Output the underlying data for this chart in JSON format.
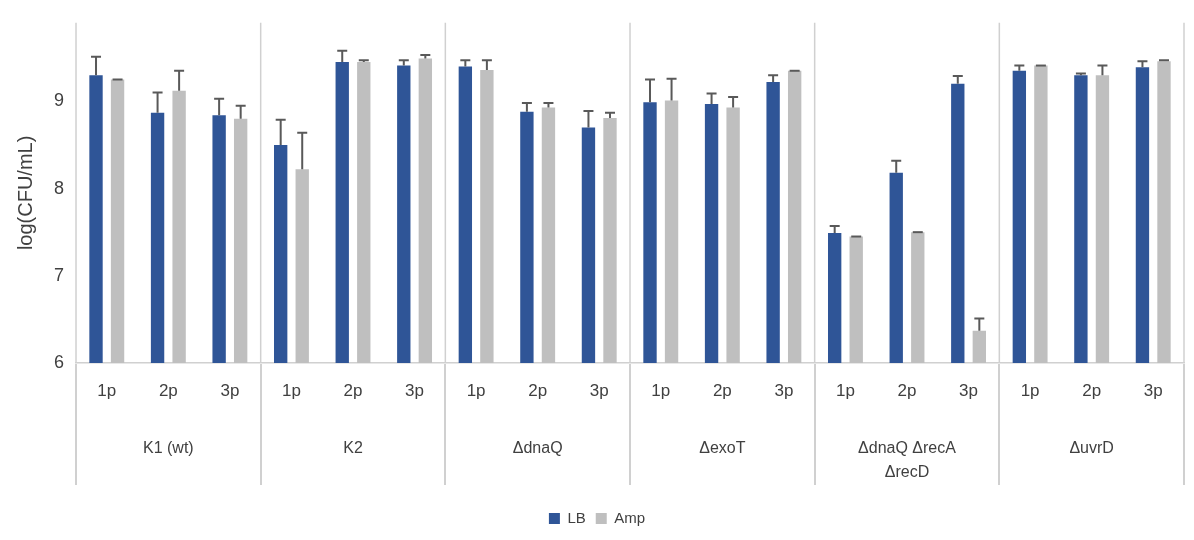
{
  "chart_data": {
    "type": "bar",
    "ylabel": "log(CFU/mL)",
    "categories": [
      "1p",
      "2p",
      "3p",
      "1p",
      "2p",
      "3p",
      "1p",
      "2p",
      "3p",
      "1p",
      "2p",
      "3p",
      "1p",
      "2p",
      "3p",
      "1p",
      "2p",
      "3p"
    ],
    "annotations": [
      "K1 (wt)",
      "K2",
      "ΔdnaQ",
      "ΔexoT",
      "ΔdnaQ ΔrecA ΔrecD",
      "ΔuvrD"
    ],
    "series": [
      {
        "name": "LB",
        "color": "#2f5597",
        "values": [
          9.3,
          8.87,
          8.84,
          8.5,
          9.45,
          9.41,
          9.4,
          8.88,
          8.7,
          8.99,
          8.97,
          9.22,
          7.49,
          8.18,
          9.2,
          9.35,
          9.3,
          9.39
        ],
        "errors": [
          [
            9.3,
            9.51
          ],
          [
            8.87,
            9.1
          ],
          [
            8.84,
            9.03
          ],
          [
            8.5,
            8.79
          ],
          [
            9.45,
            9.58
          ],
          [
            9.41,
            9.47
          ],
          [
            9.4,
            9.47
          ],
          [
            8.88,
            8.98
          ],
          [
            8.7,
            8.89
          ],
          [
            8.99,
            9.25
          ],
          [
            8.97,
            9.09
          ],
          [
            9.22,
            9.3
          ],
          [
            7.49,
            7.57
          ],
          [
            8.18,
            8.32
          ],
          [
            9.2,
            9.29
          ],
          [
            9.35,
            9.41
          ],
          [
            9.3,
            9.32
          ],
          [
            9.39,
            9.46
          ]
        ]
      },
      {
        "name": "Amp",
        "color": "#bfbfbf",
        "values": [
          9.25,
          9.12,
          8.8,
          8.22,
          9.45,
          9.49,
          9.36,
          8.93,
          8.81,
          9.01,
          8.93,
          9.35,
          7.45,
          7.5,
          6.37,
          9.41,
          9.3,
          9.46
        ],
        "errors": [
          [
            9.25,
            9.25
          ],
          [
            9.12,
            9.35
          ],
          [
            8.8,
            8.95
          ],
          [
            8.22,
            8.64
          ],
          [
            9.45,
            9.47
          ],
          [
            9.49,
            9.53
          ],
          [
            9.36,
            9.47
          ],
          [
            8.93,
            8.98
          ],
          [
            8.81,
            8.87
          ],
          [
            9.01,
            9.26
          ],
          [
            8.93,
            9.05
          ],
          [
            9.35,
            9.35
          ],
          [
            7.45,
            7.45
          ],
          [
            7.5,
            7.5
          ],
          [
            6.37,
            6.51
          ],
          [
            9.41,
            9.41
          ],
          [
            9.3,
            9.41
          ],
          [
            9.46,
            9.47
          ]
        ]
      }
    ],
    "ylim": [
      6,
      9.9
    ],
    "yticks": [
      6,
      7,
      8,
      9
    ],
    "grid": false,
    "legend": "bottom"
  }
}
